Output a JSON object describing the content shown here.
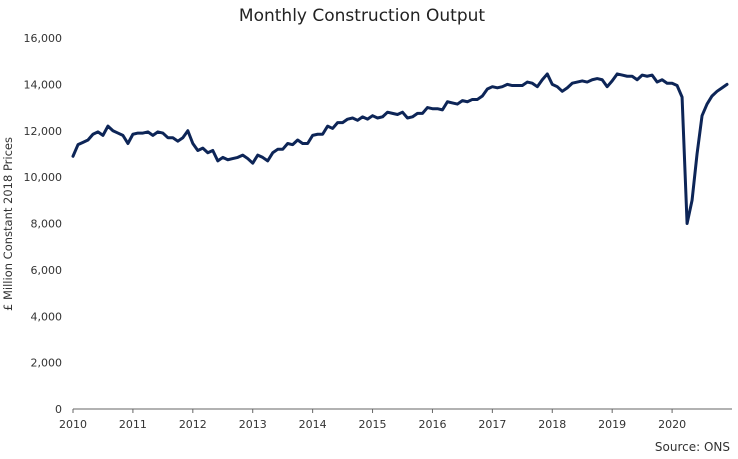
{
  "chart_data": {
    "type": "line",
    "title": "Monthly Construction Output",
    "ylabel": "£ Million Constant 2018 Prices",
    "xlabel": "",
    "source": "Source: ONS",
    "ylim": [
      0,
      16000
    ],
    "yticks": [
      0,
      2000,
      4000,
      6000,
      8000,
      10000,
      12000,
      14000,
      16000
    ],
    "ytick_labels": [
      "0",
      "2,000",
      "4,000",
      "6,000",
      "8,000",
      "10,000",
      "12,000",
      "14,000",
      "16,000"
    ],
    "xlim": [
      2010,
      2021
    ],
    "xticks": [
      2010,
      2011,
      2012,
      2013,
      2014,
      2015,
      2016,
      2017,
      2018,
      2019,
      2020
    ],
    "xtick_labels": [
      "2010",
      "2011",
      "2012",
      "2013",
      "2014",
      "2015",
      "2016",
      "2017",
      "2018",
      "2019",
      "2020"
    ],
    "grid": false,
    "legend": "none",
    "line_color": "#0d2557",
    "series": [
      {
        "name": "",
        "frequency": "monthly",
        "start": "2010-01",
        "values": [
          10900,
          11400,
          11500,
          11600,
          11850,
          11950,
          11800,
          12200,
          12000,
          11900,
          11800,
          11450,
          11850,
          11900,
          11900,
          11950,
          11800,
          11950,
          11900,
          11700,
          11700,
          11550,
          11700,
          12000,
          11450,
          11150,
          11250,
          11050,
          11150,
          10700,
          10850,
          10750,
          10800,
          10850,
          10950,
          10800,
          10600,
          10950,
          10850,
          10700,
          11050,
          11200,
          11200,
          11450,
          11400,
          11600,
          11450,
          11450,
          11800,
          11850,
          11850,
          12200,
          12100,
          12350,
          12350,
          12500,
          12550,
          12450,
          12600,
          12500,
          12650,
          12550,
          12600,
          12800,
          12750,
          12700,
          12800,
          12550,
          12600,
          12750,
          12750,
          13000,
          12950,
          12950,
          12900,
          13250,
          13200,
          13150,
          13300,
          13250,
          13350,
          13350,
          13500,
          13800,
          13900,
          13850,
          13900,
          14000,
          13950,
          13950,
          13950,
          14100,
          14050,
          13900,
          14200,
          14450,
          14000,
          13900,
          13700,
          13850,
          14050,
          14100,
          14150,
          14100,
          14200,
          14250,
          14200,
          13900,
          14150,
          14450,
          14400,
          14350,
          14350,
          14200,
          14400,
          14350,
          14400,
          14100,
          14200,
          14050,
          14050,
          13950,
          13450,
          8000,
          9000,
          11000,
          12650,
          13150,
          13500,
          13700,
          13850,
          14000
        ]
      }
    ]
  }
}
